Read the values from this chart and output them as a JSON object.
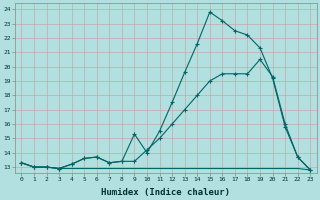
{
  "xlabel": "Humidex (Indice chaleur)",
  "bg_color": "#b2dfdf",
  "grid_color": "#d0e8e8",
  "line_color": "#006666",
  "xlim": [
    -0.5,
    23.5
  ],
  "ylim": [
    12.6,
    24.4
  ],
  "yticks": [
    13,
    14,
    15,
    16,
    17,
    18,
    19,
    20,
    21,
    22,
    23,
    24
  ],
  "xticks": [
    0,
    1,
    2,
    3,
    4,
    5,
    6,
    7,
    8,
    9,
    10,
    11,
    12,
    13,
    14,
    15,
    16,
    17,
    18,
    19,
    20,
    21,
    22,
    23
  ],
  "series1_x": [
    0,
    1,
    2,
    3,
    4,
    5,
    6,
    7,
    8,
    9,
    10,
    11,
    12,
    13,
    14,
    15,
    16,
    17,
    18,
    19,
    20,
    21,
    22,
    23
  ],
  "series1_y": [
    13.3,
    13.0,
    13.0,
    12.9,
    13.2,
    13.6,
    13.7,
    13.3,
    13.4,
    15.3,
    14.0,
    15.5,
    17.5,
    19.6,
    21.6,
    23.8,
    23.2,
    22.5,
    22.2,
    21.3,
    19.2,
    15.8,
    13.7,
    12.8
  ],
  "series2_x": [
    0,
    1,
    2,
    3,
    4,
    5,
    6,
    7,
    8,
    9,
    10,
    11,
    12,
    13,
    14,
    15,
    16,
    17,
    18,
    19,
    20,
    21,
    22,
    23
  ],
  "series2_y": [
    13.3,
    13.0,
    13.0,
    12.9,
    13.2,
    13.6,
    13.7,
    13.3,
    13.4,
    13.4,
    14.2,
    15.0,
    16.0,
    17.0,
    18.0,
    19.0,
    19.5,
    19.5,
    19.5,
    20.5,
    19.3,
    16.0,
    13.7,
    12.8
  ],
  "series3_x": [
    0,
    1,
    2,
    3,
    4,
    5,
    6,
    7,
    8,
    9,
    10,
    11,
    12,
    13,
    14,
    15,
    16,
    17,
    18,
    19,
    20,
    21,
    22,
    23
  ],
  "series3_y": [
    13.3,
    13.0,
    13.0,
    12.9,
    12.9,
    12.9,
    12.9,
    12.9,
    12.9,
    12.9,
    12.9,
    12.9,
    12.9,
    12.9,
    12.9,
    12.9,
    12.9,
    12.9,
    12.9,
    12.9,
    12.9,
    12.9,
    12.9,
    12.8
  ]
}
